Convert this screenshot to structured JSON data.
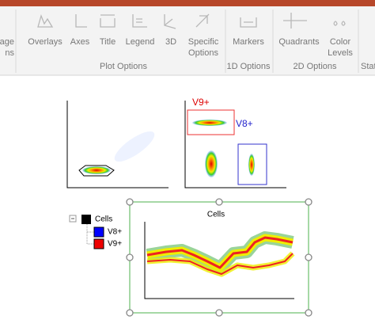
{
  "ribbon": {
    "groups": [
      {
        "label": "Plot Options",
        "buttons": [
          {
            "label": [
              "Overlays"
            ]
          },
          {
            "label": [
              "Axes"
            ]
          },
          {
            "label": [
              "Title"
            ]
          },
          {
            "label": [
              "Legend"
            ]
          },
          {
            "label": [
              "3D"
            ]
          },
          {
            "label": [
              "Specific",
              "Options"
            ]
          }
        ]
      },
      {
        "label": "1D Options",
        "buttons": [
          {
            "label": [
              "Markers"
            ]
          }
        ]
      },
      {
        "label": "2D Options",
        "buttons": [
          {
            "label": [
              "Quadrants"
            ]
          },
          {
            "label": [
              "Color",
              "Levels"
            ]
          }
        ]
      }
    ],
    "cut_left": [
      "age",
      "ns"
    ],
    "cut_right": "Stat"
  },
  "layout": {
    "gates": [
      "V9+",
      "V8+"
    ],
    "overlay_title": "Cells",
    "legend": [
      "Cells",
      "V8+",
      "V9+"
    ]
  }
}
